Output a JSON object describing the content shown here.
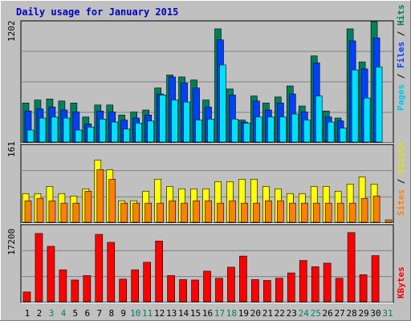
{
  "title": "Daily usage for January 2015",
  "colors": {
    "background": "#c0c0c0",
    "plot": "#c0c0c0",
    "title": "#0000c0",
    "hits": "#00805c",
    "files": "#0040ff",
    "pages": "#00e0ff",
    "visits": "#ffff00",
    "sites": "#ff8000",
    "kbytes": "#ff0000",
    "weekday_label": "#000000",
    "weekend_label": "#00805c"
  },
  "axis_labels": {
    "top_max": "1202",
    "mid_max": "161",
    "bottom_max": "17200",
    "pages": "Pages",
    "files": "Files",
    "hits": "Hits",
    "sites": "Sites",
    "visits": "Visits",
    "kbytes": "KBytes",
    "sep": " / "
  },
  "chart_data": {
    "type": "bar",
    "title": "Daily usage for January 2015",
    "categories": [
      "1",
      "2",
      "3",
      "4",
      "5",
      "6",
      "7",
      "8",
      "9",
      "10",
      "11",
      "12",
      "13",
      "14",
      "15",
      "16",
      "17",
      "18",
      "19",
      "20",
      "21",
      "22",
      "23",
      "24",
      "25",
      "26",
      "27",
      "28",
      "29",
      "30",
      "31"
    ],
    "weekend_days": [
      "3",
      "4",
      "10",
      "11",
      "17",
      "18",
      "24",
      "25",
      "31"
    ],
    "panels": [
      {
        "name": "hits-files-pages",
        "ymax": 1202,
        "series": [
          {
            "name": "Hits",
            "values": [
              390,
              420,
              430,
              410,
              390,
              250,
              370,
              370,
              270,
              300,
              320,
              540,
              670,
              650,
              620,
              420,
              1130,
              530,
              220,
              460,
              390,
              450,
              560,
              360,
              860,
              310,
              240,
              1130,
              800,
              1202,
              null
            ]
          },
          {
            "name": "Files",
            "values": [
              310,
              330,
              350,
              320,
              300,
              180,
              310,
              300,
              220,
              240,
              270,
              480,
              650,
              590,
              540,
              350,
              1020,
              470,
              200,
              410,
              320,
              390,
              480,
              300,
              790,
              250,
              210,
              1010,
              730,
              1040,
              null
            ]
          },
          {
            "name": "Pages",
            "values": [
              120,
              240,
              250,
              240,
              120,
              150,
              230,
              200,
              130,
              190,
              210,
              470,
              420,
              400,
              220,
              230,
              770,
              230,
              190,
              250,
              250,
              250,
              280,
              220,
              460,
              200,
              140,
              720,
              440,
              750,
              null
            ]
          }
        ]
      },
      {
        "name": "visits-sites",
        "ymax": 161,
        "series": [
          {
            "name": "Visits",
            "values": [
              60,
              60,
              75,
              60,
              55,
              70,
              130,
              110,
              45,
              45,
              65,
              90,
              75,
              70,
              70,
              70,
              85,
              85,
              90,
              90,
              75,
              70,
              60,
              60,
              75,
              75,
              65,
              80,
              95,
              80,
              null
            ]
          },
          {
            "name": "Sites",
            "values": [
              45,
              50,
              45,
              40,
              40,
              65,
              110,
              90,
              40,
              40,
              40,
              40,
              45,
              40,
              45,
              45,
              40,
              45,
              40,
              40,
              45,
              45,
              40,
              40,
              40,
              40,
              40,
              40,
              50,
              55,
              5
            ]
          }
        ]
      },
      {
        "name": "kbytes",
        "ymax": 17200,
        "series": [
          {
            "name": "KBytes",
            "values": [
              2200,
              15400,
              12500,
              7200,
              4900,
              5900,
              15200,
              13400,
              5100,
              7200,
              8900,
              13700,
              5900,
              5000,
              4900,
              6900,
              5300,
              7800,
              10300,
              5000,
              4800,
              5300,
              6500,
              9300,
              7900,
              8700,
              5300,
              15600,
              6100,
              10400,
              null
            ]
          }
        ]
      }
    ]
  }
}
